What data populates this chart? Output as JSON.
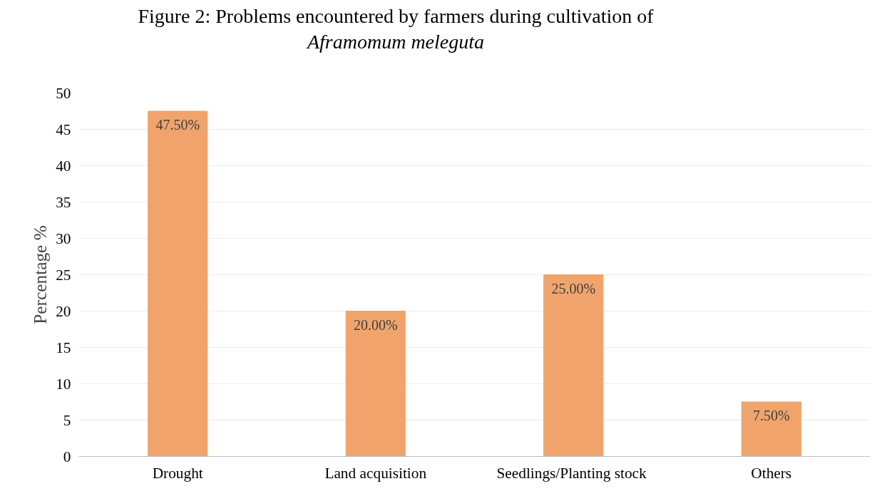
{
  "chart_data": {
    "type": "bar",
    "title": "Figure 2: Problems encountered by farmers during cultivation of\nAframomum meleguta",
    "ylabel": "Percentage %",
    "categories": [
      "Drought",
      "Land acquisition",
      "Seedlings/Planting  stock",
      "Others"
    ],
    "values": [
      47.5,
      20,
      25,
      7.5
    ],
    "color": "#f0a46c",
    "value_labels": [
      "47.50%",
      "20.00%",
      "25.00%",
      "7.50%"
    ],
    "ylim": [
      0,
      50
    ],
    "yticks": [
      0,
      5,
      10,
      15,
      20,
      25,
      30,
      35,
      40,
      45,
      50
    ],
    "grid": "y"
  }
}
